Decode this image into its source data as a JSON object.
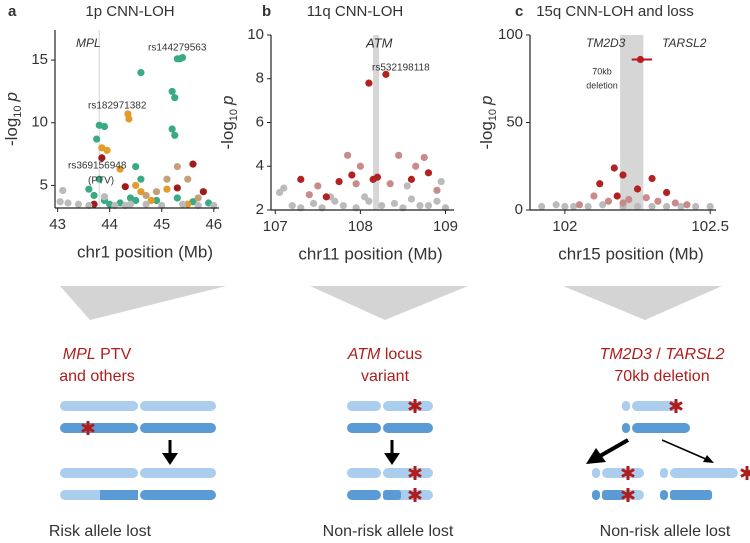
{
  "chart_data": [
    {
      "type": "scatter",
      "panel_label": "a",
      "title": "1p CNN-LOH",
      "xlabel": "chr1 position (Mb)",
      "ylabel": [
        "-log",
        "10",
        "p"
      ],
      "xlim": [
        42.95,
        46.1
      ],
      "xticks": [
        43,
        44,
        45,
        46
      ],
      "ylim": [
        3.2,
        17.4
      ],
      "yticks": [
        5,
        10,
        15
      ],
      "highlight": [
        43.79,
        43.81
      ],
      "series": [
        {
          "color": "#3aaa85",
          "x": [
            45.3,
            45.35,
            45.4,
            44.6,
            45.2,
            45.25,
            45.2,
            45.25,
            43.8,
            43.9,
            43.75,
            43.8,
            44.5,
            44.6,
            44.4,
            44.5,
            44.9,
            45.3,
            43.6,
            43.7,
            44.2,
            44,
            45.9,
            43.9,
            45.6
          ],
          "y": [
            15.1,
            15.1,
            15.2,
            14,
            12.5,
            12,
            9.5,
            9,
            9.8,
            9.7,
            8.7,
            5.5,
            6.5,
            5.5,
            4,
            3.8,
            3.8,
            4,
            4.7,
            4.2,
            3.6,
            3.5,
            3.6,
            3.8,
            3.7
          ]
        },
        {
          "color": "#e39b2b",
          "x": [
            44.35,
            44.37,
            43.85,
            43.95,
            44.5,
            44.6,
            45.1,
            44.8,
            45.5,
            44.2
          ],
          "y": [
            10.7,
            10.3,
            8,
            7.8,
            5,
            4.5,
            4.7,
            3.8,
            3.5,
            6.3
          ]
        },
        {
          "color": "#c4a07a",
          "x": [
            45.3,
            45.5,
            45.1,
            44.9,
            45.7,
            44.7
          ],
          "y": [
            6.5,
            5.5,
            5.5,
            4.5,
            4,
            4.2
          ]
        },
        {
          "color": "#a01c1c",
          "x": [
            43.85,
            45.6,
            45.3,
            45.8,
            43.7,
            44.3
          ],
          "y": [
            7.2,
            6.7,
            4.8,
            4.5,
            3.5,
            4.9
          ]
        },
        {
          "color": "#bbbbbb",
          "x": [
            43.05,
            43.1,
            43.2,
            43.4,
            43.6,
            43.9,
            44.1,
            44.3,
            44.7,
            45.0,
            45.4,
            45.7,
            46,
            44.4
          ],
          "y": [
            3.7,
            4.6,
            3.6,
            3.5,
            3.4,
            4.1,
            3.4,
            3.4,
            3.5,
            3.4,
            3.5,
            3.4,
            3.4,
            3.5
          ]
        }
      ],
      "annotations": [
        {
          "text": "MPL",
          "italic": true,
          "color": "#222222"
        },
        {
          "text": "rs144279563",
          "color": "#3aaa85"
        },
        {
          "text": "rs182971382",
          "color": "#e39b2b"
        },
        {
          "text": "rs369156948",
          "color": "#a01c1c"
        },
        {
          "text": "(PTV)",
          "color": "#a01c1c"
        }
      ]
    },
    {
      "type": "scatter",
      "panel_label": "b",
      "title": "11q CNN-LOH",
      "xlabel": "chr11 position (Mb)",
      "ylabel": [
        "-log",
        "10",
        "p"
      ],
      "xlim": [
        106.95,
        109.1
      ],
      "xticks": [
        107,
        108,
        109
      ],
      "ylim": [
        2,
        10
      ],
      "yticks": [
        2,
        4,
        6,
        8,
        10
      ],
      "highlight": [
        108.15,
        108.22
      ],
      "series": [
        {
          "color": "#bbbbbb",
          "x": [
            107.05,
            107.1,
            107.2,
            107.3,
            107.45,
            107.55,
            107.7,
            107.8,
            107.95,
            108.05,
            108.25,
            108.4,
            108.5,
            108.6,
            108.7,
            108.8,
            108.9,
            109,
            108.55,
            108.95,
            107.65,
            108.1
          ],
          "y": [
            2.8,
            3,
            2.2,
            2.1,
            2.3,
            2.1,
            2.4,
            2.2,
            2.1,
            2.6,
            2.2,
            2.3,
            2.1,
            2.5,
            2.2,
            2.2,
            2.4,
            2.1,
            3.1,
            3.3,
            2.6,
            2.4
          ]
        },
        {
          "color": "#c98a8a",
          "x": [
            107.85,
            108.45,
            108.0,
            108.65,
            108.75,
            107.95,
            107.5,
            108.35,
            107.4,
            108.9
          ],
          "y": [
            4.5,
            4.5,
            4,
            4,
            4.4,
            3.2,
            3.1,
            3.2,
            2.7,
            2.9
          ]
        },
        {
          "color": "#b22222",
          "x": [
            108.3,
            108.1,
            108.2,
            108.15,
            107.75,
            107.9,
            108.6,
            107.3,
            108.8,
            107.6
          ],
          "y": [
            8.2,
            7.8,
            3.5,
            3.4,
            3.3,
            3.6,
            3.4,
            3.4,
            3.7,
            2.6
          ]
        }
      ],
      "annotations": [
        {
          "text": "ATM",
          "italic": true,
          "color": "#222222"
        },
        {
          "text": "rs532198118",
          "color": "#b22222"
        }
      ]
    },
    {
      "type": "scatter",
      "panel_label": "c",
      "title": "15q CNN-LOH and loss",
      "xlabel": "chr15 position (Mb)",
      "ylabel": [
        "-log",
        "10",
        "p"
      ],
      "xlim": [
        101.88,
        102.52
      ],
      "xticks": [
        102,
        102.5
      ],
      "ylim": [
        0,
        100
      ],
      "yticks": [
        0,
        50,
        100
      ],
      "highlight": [
        102.19,
        102.27
      ],
      "series": [
        {
          "color": "#bbbbbb",
          "x": [
            101.92,
            101.97,
            102.0,
            102.03,
            102.08,
            102.13,
            102.2,
            102.25,
            102.3,
            102.35,
            102.4,
            102.45,
            102.5
          ],
          "y": [
            2,
            3,
            2,
            2,
            2,
            3,
            2,
            2,
            2,
            2,
            2,
            2,
            2
          ]
        },
        {
          "color": "#c98a8a",
          "x": [
            102.1,
            102.15,
            102.22,
            102.28,
            102.32,
            102.38,
            102.42,
            102.05,
            102.2
          ],
          "y": [
            8,
            5,
            6,
            7,
            5,
            4,
            3,
            3,
            4
          ]
        },
        {
          "color": "#b22222",
          "x": [
            102.26,
            102.17,
            102.12,
            102.2,
            102.25,
            102.3,
            102.35,
            102.18
          ],
          "y": [
            86,
            24,
            15,
            20,
            12,
            18,
            10,
            8
          ]
        }
      ],
      "interval": {
        "x": [
          102.23,
          102.3
        ],
        "y": 86,
        "color": "#c0141c"
      },
      "annotations": [
        {
          "text": "TM2D3",
          "italic": true,
          "color": "#222222"
        },
        {
          "text": "TARSL2",
          "italic": true,
          "color": "#222222"
        },
        {
          "text": "70kb",
          "color": "#c0141c"
        },
        {
          "text": "deletion",
          "color": "#c0141c"
        }
      ]
    }
  ],
  "diagrams": [
    {
      "heading": [
        [
          {
            "text": "MPL",
            "italic": true
          },
          {
            "text": " PTV"
          }
        ],
        [
          {
            "text": "and others"
          }
        ]
      ],
      "caption": "Risk allele lost"
    },
    {
      "heading": [
        [
          {
            "text": "ATM",
            "italic": true
          },
          {
            "text": " locus"
          }
        ],
        [
          {
            "text": "variant"
          }
        ]
      ],
      "caption": "Non-risk allele lost"
    },
    {
      "heading": [
        [
          {
            "text": "TM2D3",
            "italic": true
          },
          {
            "text": " / "
          },
          {
            "text": "TARSL2",
            "italic": true
          }
        ],
        [
          {
            "text": "70kb deletion"
          }
        ]
      ],
      "caption": "Non-risk allele lost"
    }
  ]
}
